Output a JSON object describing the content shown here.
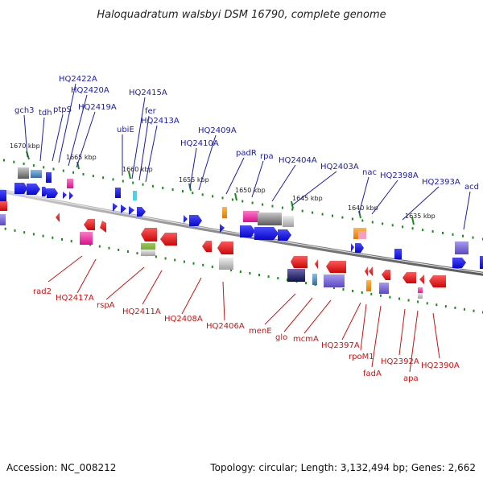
{
  "title": "Haloquadratum walsbyi DSM 16790, complete genome",
  "footer": {
    "accession": "Accession: NC_008212",
    "topology": "Topology: circular; Length: 3,132,494 bp; Genes: 2,662"
  },
  "ticks": [
    "1670 kbp",
    "1665 kbp",
    "1660 kbp",
    "1655 kbp",
    "1650 kbp",
    "1645 kbp",
    "1640 kbp",
    "1635 kbp"
  ],
  "genes_forward": [
    "gch3",
    "tdh",
    "ptpS",
    "HQ2422A",
    "HQ2420A",
    "HQ2419A",
    "ubiE",
    "HQ2415A",
    "fer",
    "HQ2413A",
    "HQ2410A",
    "HQ2409A",
    "padR",
    "rpa",
    "HQ2404A",
    "HQ2403A",
    "nac",
    "HQ2398A",
    "HQ2393A",
    "acd"
  ],
  "genes_reverse": [
    "rad2",
    "HQ2417A",
    "rspA",
    "HQ2411A",
    "HQ2408A",
    "HQ2406A",
    "menE",
    "glo",
    "mcmA",
    "HQ2397A",
    "rpoM1",
    "fadA",
    "HQ2392A",
    "apa",
    "HQ2390A"
  ],
  "colors": {
    "forward_label": "#1c1ca8",
    "reverse_label": "#c81414",
    "forward_gene": "#1010ee",
    "reverse_gene": "#ee1010",
    "backbone": "#8a8a8a",
    "tick": "#1a8a1a"
  }
}
